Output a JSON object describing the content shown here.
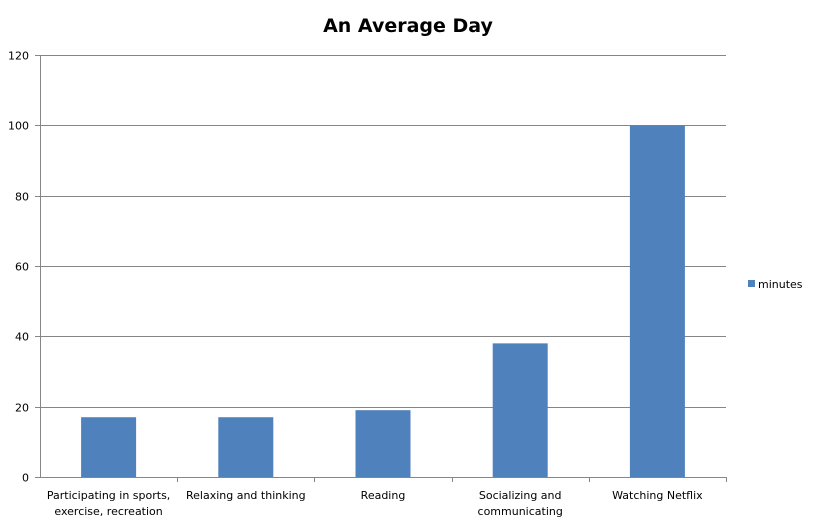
{
  "chart_data": {
    "type": "bar",
    "title": "An Average Day",
    "categories": [
      [
        "Participating in sports,",
        "exercise, recreation"
      ],
      [
        "Relaxing and thinking"
      ],
      [
        "Reading"
      ],
      [
        "Socializing and",
        "communicating"
      ],
      [
        "Watching Netflix"
      ]
    ],
    "series": [
      {
        "name": "minutes",
        "values": [
          17,
          17,
          19,
          38,
          100
        ],
        "color": "#4f81bd"
      }
    ],
    "ylim": [
      0,
      120
    ],
    "yticks": [
      0,
      20,
      40,
      60,
      80,
      100,
      120
    ],
    "grid": true,
    "legend": "right"
  }
}
